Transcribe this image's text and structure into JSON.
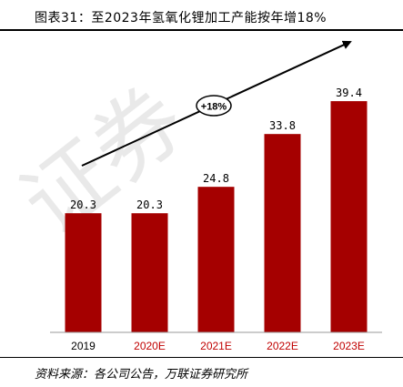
{
  "header": {
    "title": "图表31：至2023年氢氧化锂加工产能按年增18%"
  },
  "chart_data": {
    "type": "bar",
    "categories": [
      "2019",
      "2020E",
      "2021E",
      "2022E",
      "2023E"
    ],
    "values": [
      20.3,
      20.3,
      24.8,
      33.8,
      39.4
    ],
    "value_labels": [
      "20.3",
      "20.3",
      "24.8",
      "33.8",
      "39.4"
    ],
    "bar_color": "#a50000",
    "ylim": [
      0,
      45
    ],
    "grid": false,
    "annotation": "+18%",
    "tick_colors": {
      "actual": "#000000",
      "estimate": "#c00000"
    }
  },
  "footer": {
    "source": "资料来源：各公司公告，万联证券研究所"
  },
  "watermark": "证券"
}
